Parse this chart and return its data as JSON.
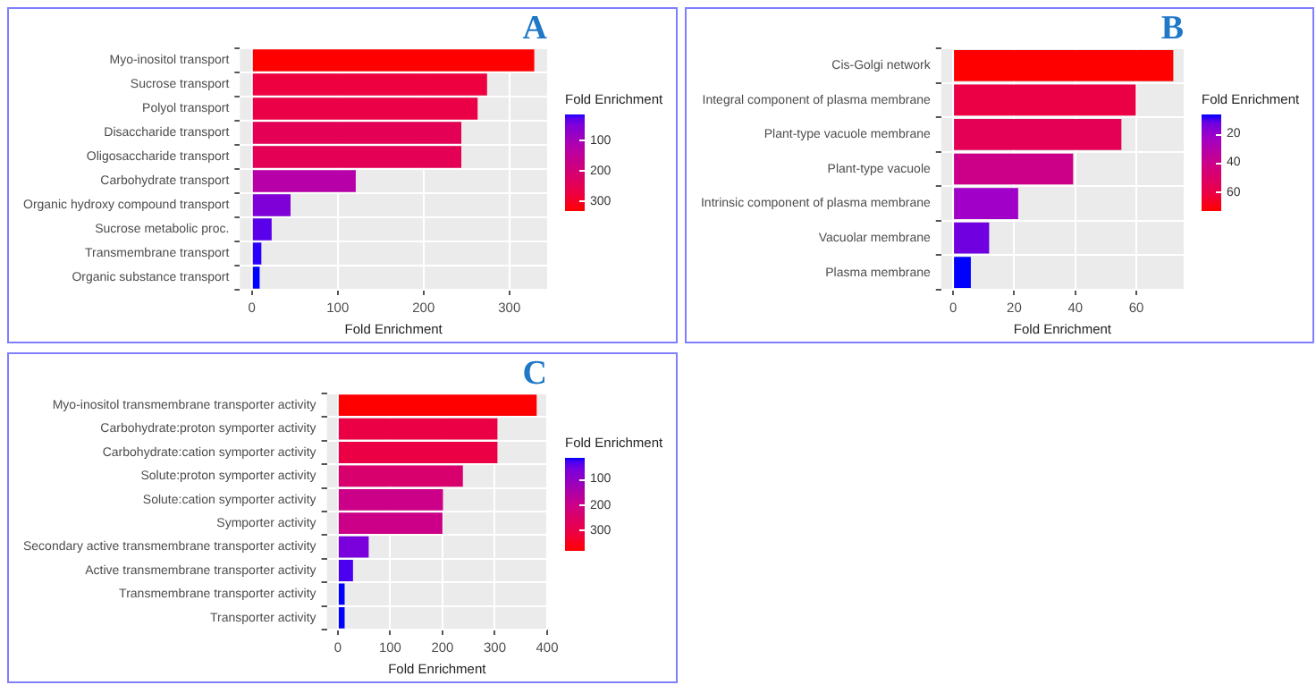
{
  "chart_data": [
    {
      "type": "bar",
      "orientation": "horizontal",
      "title": "A",
      "xlabel": "Fold Enrichment",
      "categories": [
        "Myo-inositol transport",
        "Sucrose transport",
        "Polyol transport",
        "Disaccharide transport",
        "Oligosaccharide transport",
        "Carbohydrate transport",
        "Organic hydroxy compound transport",
        "Sucrose metabolic proc.",
        "Transmembrane transport",
        "Organic substance transport"
      ],
      "values": [
        329,
        274,
        263,
        244,
        244,
        121,
        45,
        23,
        11,
        9
      ],
      "colors": [
        "#ff0000",
        "#ee0040",
        "#eb0048",
        "#e40055",
        "#e40055",
        "#b700a8",
        "#8000d8",
        "#5a00ea",
        "#2a00fc",
        "#0000ff"
      ],
      "xlim": [
        -14,
        344
      ],
      "xticks": [
        0,
        100,
        200,
        300
      ],
      "grid": true,
      "clabel": "Fold Enrichment",
      "clim": [
        9,
        329
      ],
      "cticks": [
        100,
        200,
        300
      ]
    },
    {
      "type": "bar",
      "orientation": "horizontal",
      "title": "B",
      "xlabel": "Fold Enrichment",
      "categories": [
        "Cis-Golgi network",
        "Integral component of plasma membrane",
        "Plant-type vacuole membrane",
        "Plant-type vacuole",
        "Intrinsic component of plasma membrane",
        "Vacuolar membrane",
        "Plasma membrane"
      ],
      "values": [
        72.1,
        59.8,
        55.1,
        39.3,
        21.3,
        11.8,
        5.8
      ],
      "colors": [
        "#ff0000",
        "#eb0045",
        "#e40055",
        "#cc0088",
        "#a000c8",
        "#7000e0",
        "#0000ff"
      ],
      "xlim": [
        -3.9,
        75.5
      ],
      "xticks": [
        0,
        20,
        40,
        60
      ],
      "grid": true,
      "clabel": "Fold Enrichment",
      "clim": [
        5.8,
        72.1
      ],
      "cticks": [
        20,
        40,
        60
      ]
    },
    {
      "type": "bar",
      "orientation": "horizontal",
      "title": "C",
      "xlabel": "Fold Enrichment",
      "categories": [
        "Myo-inositol transmembrane transporter activity",
        "Carbohydrate:proton symporter activity",
        "Carbohydrate:cation symporter activity",
        "Solute:proton symporter activity",
        "Solute:cation symporter activity",
        "Symporter activity",
        "Secondary active transmembrane transporter activity",
        "Active transmembrane transporter activity",
        "Transmembrane transporter activity",
        "Transporter activity"
      ],
      "values": [
        380,
        305,
        305,
        239,
        201,
        200,
        59,
        29,
        13,
        13
      ],
      "colors": [
        "#ff0000",
        "#ec0045",
        "#ec0045",
        "#d8006c",
        "#cc0088",
        "#cc0088",
        "#7a00dc",
        "#4b00f0",
        "#0000ff",
        "#0000ff"
      ],
      "xlim": [
        -21,
        400
      ],
      "xticks": [
        0,
        100,
        200,
        300,
        400
      ],
      "grid": true,
      "clabel": "Fold Enrichment",
      "clim": [
        13,
        380
      ],
      "cticks": [
        100,
        200,
        300
      ]
    }
  ]
}
